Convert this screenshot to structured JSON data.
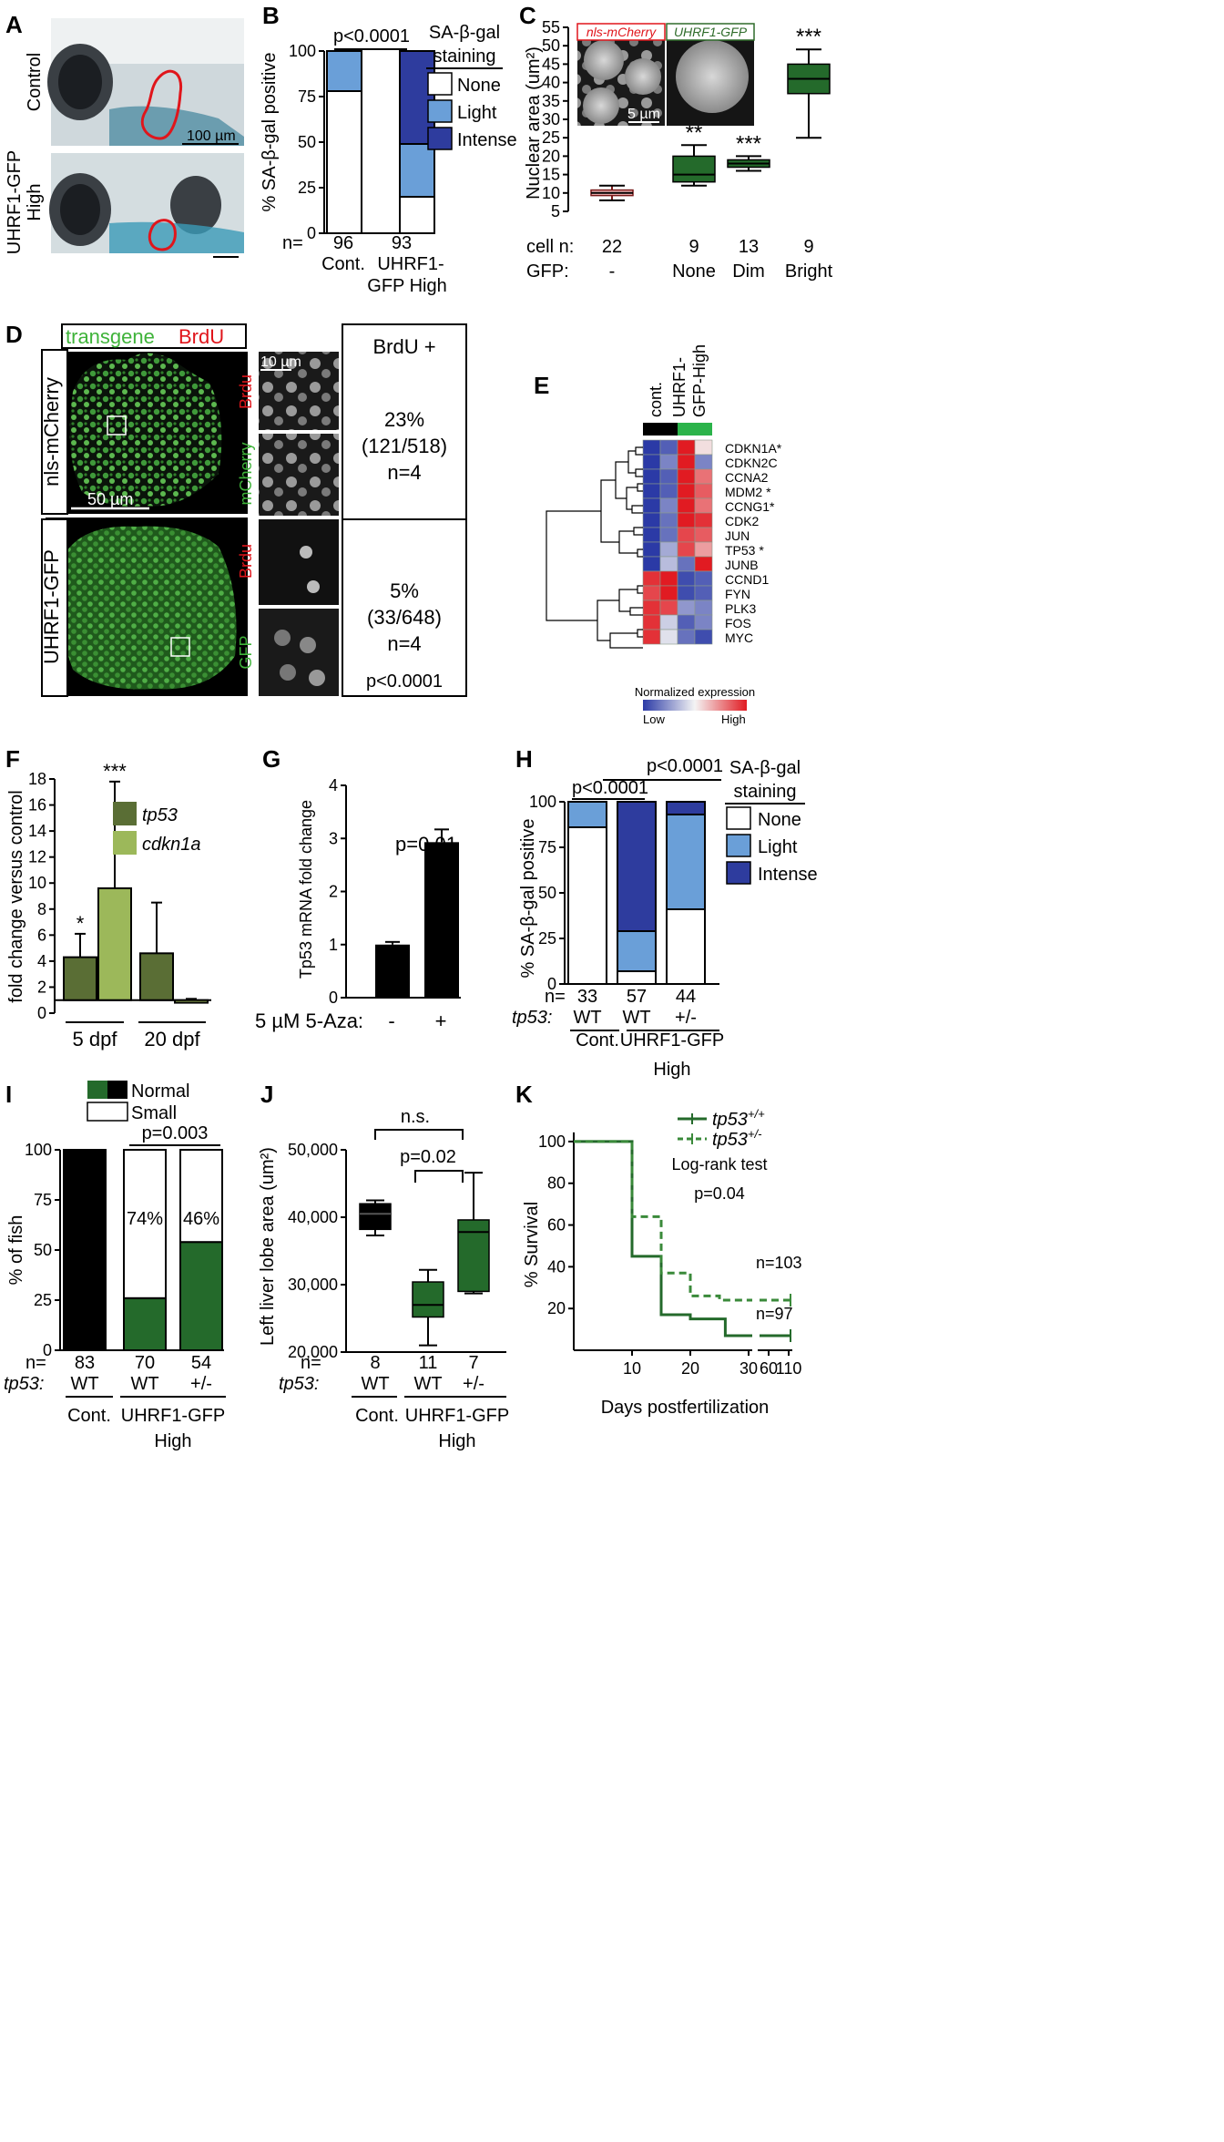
{
  "panels": {
    "A": "A",
    "B": "B",
    "C": "C",
    "D": "D",
    "E": "E",
    "F": "F",
    "G": "G",
    "H": "H",
    "I": "I",
    "J": "J",
    "K": "K"
  },
  "panel_a": {
    "row1": "Control",
    "row2a": "UHRF1-GFP",
    "row2b": "High",
    "scale": "100 µm"
  },
  "panel_b": {
    "ylabel": "% SA-β-gal positive",
    "pval": "p<0.0001",
    "legend_title1": "SA-β-gal",
    "legend_title2": "staining",
    "legend": [
      "None",
      "Light",
      "Intense"
    ],
    "n_label": "n=",
    "n": [
      "96",
      "93"
    ],
    "cat1": "Cont.",
    "cat2a": "UHRF1-",
    "cat2b": "GFP High",
    "ticks": [
      "0",
      "25",
      "50",
      "75",
      "100"
    ]
  },
  "panel_c": {
    "ylabel": "Nuclear area (um²)",
    "inset_left": "nls-mCherry",
    "inset_right": "UHRF1-GFP",
    "inset_scale": "5 µm",
    "ticks": [
      "5",
      "10",
      "15",
      "20",
      "25",
      "30",
      "35",
      "40",
      "45",
      "50",
      "55"
    ],
    "row_celln": "cell n:",
    "row_gfp": "GFP:",
    "n": [
      "22",
      "9",
      "13",
      "9"
    ],
    "gfp": [
      "-",
      "None",
      "Dim",
      "Bright"
    ],
    "stars": [
      "",
      "**",
      "***",
      "***"
    ]
  },
  "panel_d": {
    "legend_transgene": "transgene",
    "legend_brdu": "BrdU",
    "row1": "nls-mCherry",
    "row2": "UHRF1-GFP",
    "scale_big": "50 µm",
    "scale_small": "10 µm",
    "inset_labels": [
      "Brdu",
      "mCherry",
      "Brdu",
      "GFP"
    ],
    "header": "BrdU +",
    "row1_stats": [
      "23%",
      "(121/518)",
      "n=4"
    ],
    "row2_stats": [
      "5%",
      "(33/648)",
      "n=4"
    ],
    "pval": "p<0.0001"
  },
  "panel_e": {
    "col1": "cont.",
    "col2a": "UHRF1-",
    "col2b": "GFP-High",
    "genes": [
      "CDKN1A*",
      "CDKN2C",
      "CCNA2",
      "MDM2 *",
      "CCNG1*",
      "CDK2",
      "JUN",
      "TP53 *",
      "JUNB",
      "CCND1",
      "FYN",
      "PLK3",
      "FOS",
      "MYC"
    ],
    "legend_title": "Normalized expression",
    "low": "Low",
    "high": "High"
  },
  "panel_f": {
    "ylabel": "fold change versus control",
    "ticks": [
      "0",
      "2",
      "4",
      "6",
      "8",
      "10",
      "12",
      "14",
      "16",
      "18"
    ],
    "legend": [
      "tp53",
      "cdkn1a"
    ],
    "groups": [
      "5 dpf",
      "20 dpf"
    ],
    "stars": [
      "*",
      "***"
    ]
  },
  "panel_g": {
    "ylabel": "Tp53 mRNA fold change",
    "ticks": [
      "0",
      "1",
      "2",
      "3",
      "4"
    ],
    "pval": "p=0.01",
    "xlabel": "5 µM 5-Aza:",
    "cats": [
      "-",
      "+"
    ]
  },
  "panel_h": {
    "ylabel": "% SA-β-gal positive",
    "ticks": [
      "0",
      "25",
      "50",
      "75",
      "100"
    ],
    "p1": "p<0.0001",
    "p2": "p<0.0001",
    "legend_title1": "SA-β-gal",
    "legend_title2": "staining",
    "legend": [
      "None",
      "Light",
      "Intense"
    ],
    "n_label": "n=",
    "n": [
      "33",
      "57",
      "44"
    ],
    "tp53_label": "tp53:",
    "tp53": [
      "WT",
      "WT",
      "+/-"
    ],
    "cont": "Cont.",
    "uhrf": "UHRF1-GFP",
    "high": "High"
  },
  "panel_i": {
    "ylabel": "% of fish",
    "ticks": [
      "0",
      "25",
      "50",
      "75",
      "100"
    ],
    "legend": [
      "Normal",
      "Small"
    ],
    "pval": "p=0.003",
    "pct": [
      "74%",
      "46%"
    ],
    "n_label": "n=",
    "n": [
      "83",
      "70",
      "54"
    ],
    "tp53_label": "tp53:",
    "tp53": [
      "WT",
      "WT",
      "+/-"
    ],
    "cont": "Cont.",
    "uhrf": "UHRF1-GFP",
    "high": "High"
  },
  "panel_j": {
    "ylabel": "Left liver lobe area (um²)",
    "ticks": [
      "20,000",
      "30,000",
      "40,000",
      "50,000"
    ],
    "ns": "n.s.",
    "pval": "p=0.02",
    "n_label": "n=",
    "n": [
      "8",
      "11",
      "7"
    ],
    "tp53_label": "tp53:",
    "tp53": [
      "WT",
      "WT",
      "+/-"
    ],
    "cont": "Cont.",
    "uhrf": "UHRF1-GFP",
    "high": "High"
  },
  "panel_k": {
    "ylabel": "% Survival",
    "xlabel": "Days postfertilization",
    "ticks_y": [
      "20",
      "40",
      "60",
      "80",
      "100"
    ],
    "ticks_x": [
      "10",
      "20",
      "30",
      "60",
      "110"
    ],
    "legend": [
      "tp53",
      "tp53"
    ],
    "sup": [
      "+/+",
      "+/-"
    ],
    "test": "Log-rank test",
    "pval": "p=0.04",
    "n1": "n=103",
    "n2": "n=97"
  },
  "chart_data": [
    {
      "panel": "B",
      "type": "bar",
      "stacked": true,
      "categories": [
        "Cont.",
        "UHRF1-GFP High"
      ],
      "ylim": [
        0,
        100
      ],
      "series": [
        {
          "name": "None",
          "values": [
            78,
            20
          ]
        },
        {
          "name": "Light",
          "values": [
            22,
            29
          ]
        },
        {
          "name": "Intense",
          "values": [
            0,
            51
          ]
        }
      ],
      "colors": [
        "#ffffff",
        "#6a9fd8",
        "#2e3c9e"
      ]
    },
    {
      "panel": "C",
      "type": "box",
      "categories": [
        "None-control",
        "None",
        "Dim",
        "Bright"
      ],
      "ylim": [
        5,
        55
      ],
      "boxes": [
        {
          "min": 8,
          "q1": 9.3,
          "median": 10,
          "q3": 10.8,
          "max": 12
        },
        {
          "min": 12,
          "q1": 13,
          "median": 15,
          "q3": 20,
          "max": 23
        },
        {
          "min": 16,
          "q1": 17,
          "median": 18,
          "q3": 19,
          "max": 20
        },
        {
          "min": 25,
          "q1": 37,
          "median": 41,
          "q3": 45,
          "max": 49
        }
      ]
    },
    {
      "panel": "F",
      "type": "bar",
      "categories": [
        "5 dpf",
        "20 dpf"
      ],
      "ylim": [
        0,
        18
      ],
      "series": [
        {
          "name": "tp53",
          "values": [
            4.3,
            4.6
          ],
          "err": [
            6.1,
            8.5
          ]
        },
        {
          "name": "cdkn1a",
          "values": [
            9.6,
            0.8
          ],
          "err": [
            17.8,
            1.1
          ]
        }
      ]
    },
    {
      "panel": "G",
      "type": "bar",
      "categories": [
        "-",
        "+"
      ],
      "ylim": [
        0,
        4
      ],
      "values": [
        1.0,
        2.93
      ],
      "err": [
        1.05,
        3.17
      ]
    },
    {
      "panel": "H",
      "type": "bar",
      "stacked": true,
      "categories": [
        "Cont. WT",
        "UHRF1-GFP WT",
        "UHRF1-GFP +/-"
      ],
      "ylim": [
        0,
        100
      ],
      "series": [
        {
          "name": "None",
          "values": [
            86,
            7,
            41
          ]
        },
        {
          "name": "Light",
          "values": [
            14,
            22,
            52
          ]
        },
        {
          "name": "Intense",
          "values": [
            0,
            71,
            7
          ]
        }
      ]
    },
    {
      "panel": "I",
      "type": "bar",
      "stacked": true,
      "categories": [
        "Cont. WT",
        "UHRF1-GFP WT",
        "UHRF1-GFP +/-"
      ],
      "ylim": [
        0,
        100
      ],
      "series": [
        {
          "name": "Normal",
          "values": [
            100,
            26,
            54
          ]
        },
        {
          "name": "Small",
          "values": [
            0,
            74,
            46
          ]
        }
      ]
    },
    {
      "panel": "J",
      "type": "box",
      "categories": [
        "Cont. WT",
        "UHRF1-GFP WT",
        "UHRF1-GFP +/-"
      ],
      "ylim": [
        20000,
        50000
      ],
      "boxes": [
        {
          "min": 37300,
          "q1": 38200,
          "median": 40500,
          "q3": 42000,
          "max": 42500
        },
        {
          "min": 21000,
          "q1": 25200,
          "median": 27000,
          "q3": 30400,
          "max": 32200
        },
        {
          "min": 28700,
          "q1": 29000,
          "median": 37800,
          "q3": 39600,
          "max": 46600
        }
      ]
    },
    {
      "panel": "K",
      "type": "line",
      "xlabel": "Days postfertilization",
      "ylabel": "% Survival",
      "series": [
        {
          "name": "tp53 +/+",
          "x": [
            0,
            10,
            10,
            15,
            15,
            20,
            20,
            26,
            26,
            30
          ],
          "y": [
            100,
            100,
            45,
            45,
            17,
            17,
            15,
            15,
            7,
            7
          ]
        },
        {
          "name": "tp53 +/-",
          "x": [
            0,
            10,
            10,
            15,
            15,
            20,
            20,
            25,
            25,
            30
          ],
          "y": [
            100,
            100,
            64,
            64,
            37,
            37,
            26,
            26,
            24,
            24
          ]
        }
      ]
    }
  ]
}
